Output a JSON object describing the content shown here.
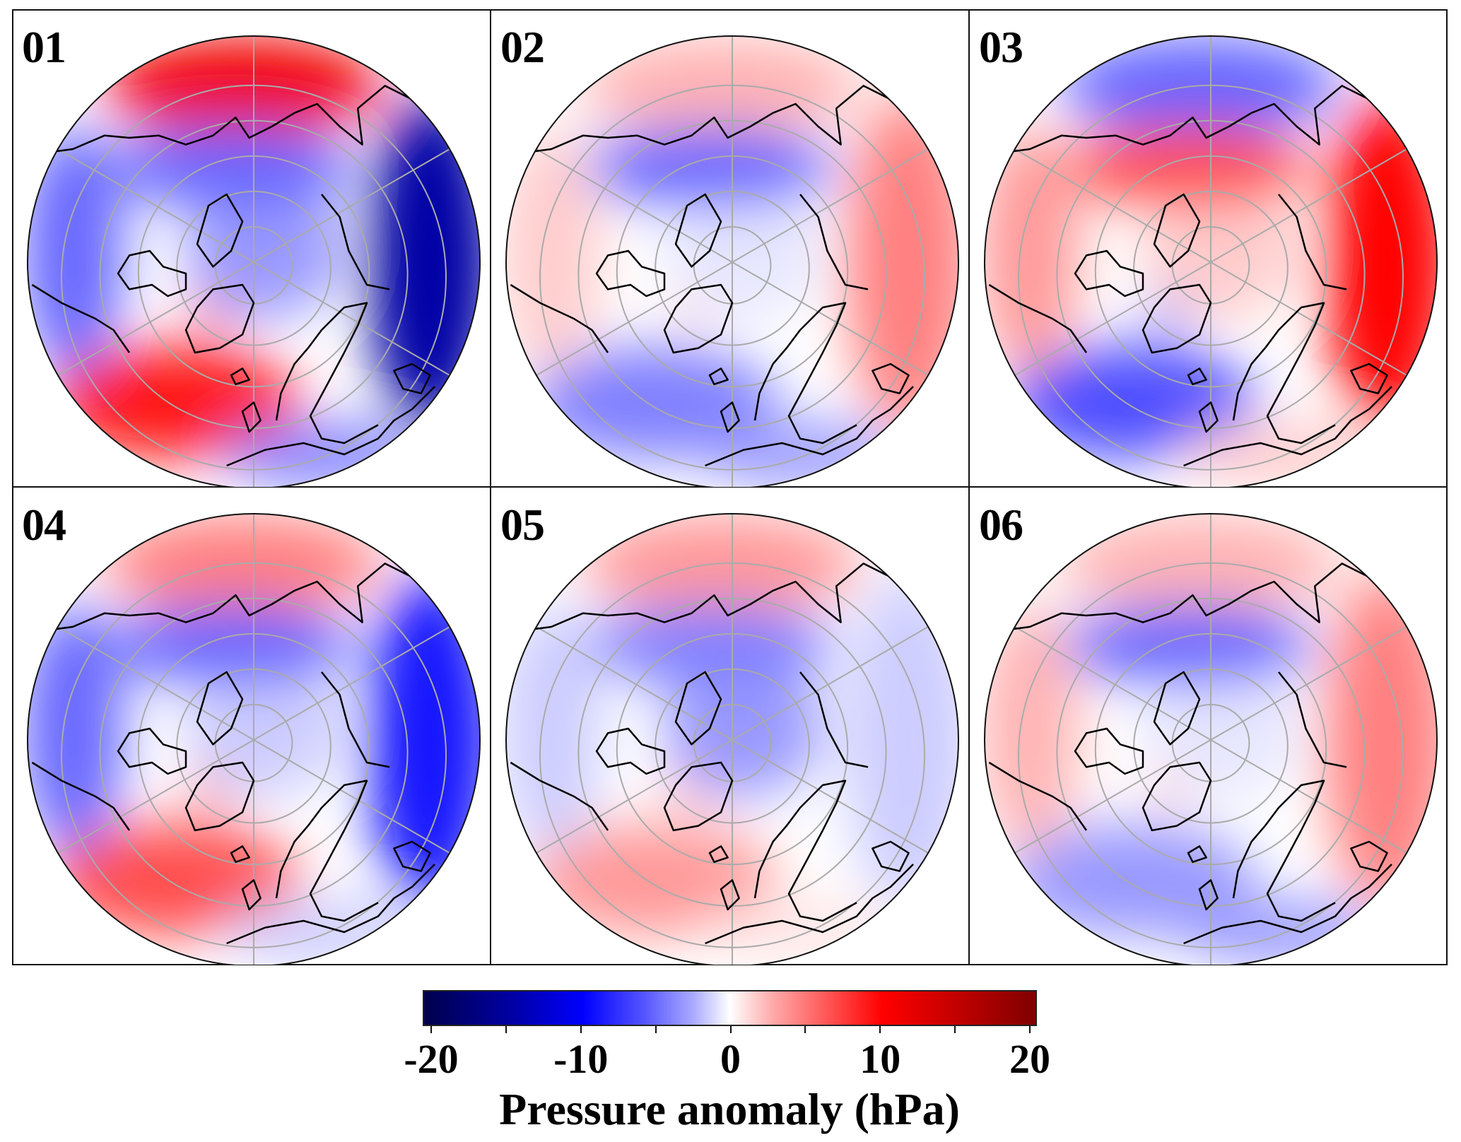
{
  "figure": {
    "panels": [
      {
        "label": "01",
        "pattern": {
          "north_pacific": 11,
          "north_atlantic": 9,
          "eurasia_east": -15,
          "greenland": 8,
          "arctic": -4,
          "north_america": -6,
          "europe_south": -5,
          "siberia": -6
        }
      },
      {
        "label": "02",
        "pattern": {
          "north_pacific": 3,
          "north_atlantic": -5,
          "eurasia_east": 5,
          "greenland": 2,
          "arctic": -1,
          "north_america": 2,
          "europe_south": -4,
          "siberia": -6
        }
      },
      {
        "label": "03",
        "pattern": {
          "north_pacific": -6,
          "north_atlantic": -7,
          "eurasia_east": 10,
          "greenland": -8,
          "arctic": 2,
          "north_america": 4,
          "europe_south": 2,
          "siberia": 7
        }
      },
      {
        "label": "04",
        "pattern": {
          "north_pacific": 5,
          "north_atlantic": 7,
          "eurasia_east": -9,
          "greenland": 8,
          "arctic": -2,
          "north_america": -6,
          "europe_south": -2,
          "siberia": -6
        }
      },
      {
        "label": "05",
        "pattern": {
          "north_pacific": 4,
          "north_atlantic": 4,
          "eurasia_east": -2,
          "greenland": 4,
          "arctic": -4,
          "north_america": -2,
          "europe_south": 1,
          "siberia": -5
        }
      },
      {
        "label": "06",
        "pattern": {
          "north_pacific": 3,
          "north_atlantic": -4,
          "eurasia_east": 5,
          "greenland": 3,
          "arctic": -1,
          "north_america": 3,
          "europe_south": -4,
          "siberia": -6
        }
      }
    ]
  },
  "colorbar": {
    "title": "Pressure anomaly (hPa)",
    "min": -20,
    "max": 20,
    "ticks": [
      -20,
      -15,
      -10,
      -5,
      0,
      5,
      10,
      15,
      20
    ],
    "tick_labels": [
      "-20",
      "-10",
      "0",
      "10",
      "20"
    ],
    "tick_label_values": [
      -20,
      -10,
      0,
      10,
      20
    ],
    "colors": [
      "#00004c",
      "#0000ff",
      "#ffffff",
      "#ff0000",
      "#800000"
    ]
  }
}
